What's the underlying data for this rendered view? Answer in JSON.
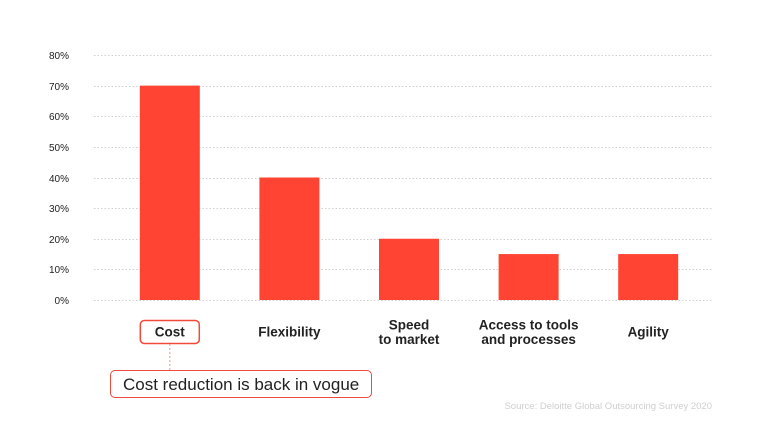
{
  "colors": {
    "bar": "#ff4433",
    "highlight_border": "#ef4a3a",
    "connector": "#f09a90"
  },
  "chart_data": {
    "type": "bar",
    "categories": [
      "Cost",
      "Flexibility",
      "Speed to market",
      "Access to tools and processes",
      "Agility"
    ],
    "category_lines": [
      [
        "Cost"
      ],
      [
        "Flexibility"
      ],
      [
        "Speed",
        "to market"
      ],
      [
        "Access to tools",
        "and processes"
      ],
      [
        "Agility"
      ]
    ],
    "values": [
      70,
      40,
      20,
      15,
      15
    ],
    "unit": "%",
    "ylim": [
      0,
      80
    ],
    "yticks": [
      "0%",
      "10%",
      "20%",
      "30%",
      "40%",
      "50%",
      "60%",
      "70%",
      "80%"
    ],
    "grid": true,
    "highlighted_category": "Cost",
    "title": "",
    "xlabel": "",
    "ylabel": ""
  },
  "annotation": {
    "text": "Cost reduction is back in vogue"
  },
  "source": "Source: Deloitte Global Outsourcing Survey 2020"
}
